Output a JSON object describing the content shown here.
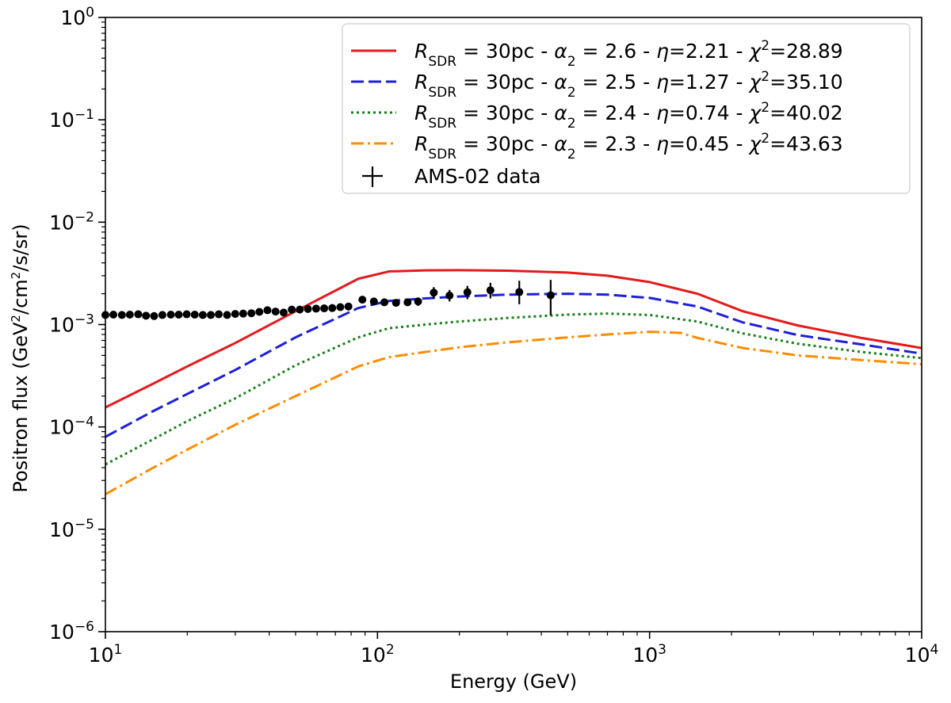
{
  "chart_data": {
    "type": "line",
    "xscale": "log",
    "yscale": "log",
    "xlim": [
      10,
      10000
    ],
    "ylim": [
      1e-06,
      1
    ],
    "xlabel": "Energy (GeV)",
    "ylabel_prefix": "Positron flux (GeV",
    "ylabel_sup1": "2",
    "ylabel_mid": "/cm",
    "ylabel_sup2": "2",
    "ylabel_suffix": "/s/sr)",
    "x_ticks": [
      {
        "value": 10,
        "base": "10",
        "exp": "1"
      },
      {
        "value": 100,
        "base": "10",
        "exp": "2"
      },
      {
        "value": 1000,
        "base": "10",
        "exp": "3"
      },
      {
        "value": 10000,
        "base": "10",
        "exp": "4"
      }
    ],
    "y_ticks": [
      {
        "value": 1e-06,
        "base": "10",
        "exp": "−6"
      },
      {
        "value": 1e-05,
        "base": "10",
        "exp": "−5"
      },
      {
        "value": 0.0001,
        "base": "10",
        "exp": "−4"
      },
      {
        "value": 0.001,
        "base": "10",
        "exp": "−3"
      },
      {
        "value": 0.01,
        "base": "10",
        "exp": "−2"
      },
      {
        "value": 0.1,
        "base": "10",
        "exp": "−1"
      },
      {
        "value": 1,
        "base": "10",
        "exp": "0"
      }
    ],
    "series": [
      {
        "name": "R_SDR = 30pc - α2 = 2.6 - η=2.21 - χ2=28.89",
        "color": "#e41a1c",
        "style": "solid",
        "legend": {
          "R": "R",
          "Rsub": "SDR",
          "eq1": " = 30pc - ",
          "alpha": "α",
          "alphasub": "2",
          "eq2": " = 2.6 - ",
          "eta": "η",
          "eq3": "=2.21 - ",
          "chi": "χ",
          "chisup": "2",
          "eq4": "=28.89"
        },
        "x": [
          10,
          15,
          20,
          30,
          50,
          85,
          110,
          150,
          200,
          300,
          500,
          700,
          1000,
          1500,
          2200,
          3500,
          6000,
          10000
        ],
        "y": [
          0.000155,
          0.000265,
          0.00039,
          0.00066,
          0.00135,
          0.0028,
          0.0033,
          0.00338,
          0.0034,
          0.00336,
          0.00322,
          0.003,
          0.0026,
          0.002,
          0.00135,
          0.00098,
          0.00074,
          0.00059
        ]
      },
      {
        "name": "R_SDR = 30pc - α2 = 2.5 - η=1.27 - χ2=35.10",
        "color": "#1f1fd6",
        "style": "dashed",
        "legend": {
          "R": "R",
          "Rsub": "SDR",
          "eq1": " = 30pc - ",
          "alpha": "α",
          "alphasub": "2",
          "eq2": " = 2.5 - ",
          "eta": "η",
          "eq3": "=1.27 - ",
          "chi": "χ",
          "chisup": "2",
          "eq4": "=35.10"
        },
        "x": [
          10,
          15,
          20,
          30,
          50,
          85,
          110,
          150,
          200,
          300,
          500,
          700,
          1000,
          1500,
          2200,
          3500,
          6000,
          10000
        ],
        "y": [
          8e-05,
          0.000143,
          0.00021,
          0.00036,
          0.00075,
          0.00145,
          0.0017,
          0.0018,
          0.00188,
          0.00196,
          0.002,
          0.00196,
          0.00182,
          0.0015,
          0.00105,
          0.00079,
          0.00064,
          0.00052
        ]
      },
      {
        "name": "R_SDR = 30pc - α2 = 2.4 - η=0.74 - χ2=40.02",
        "color": "#1a7f1a",
        "style": "dotted",
        "legend": {
          "R": "R",
          "Rsub": "SDR",
          "eq1": " = 30pc - ",
          "alpha": "α",
          "alphasub": "2",
          "eq2": " = 2.4 - ",
          "eta": "η",
          "eq3": "=0.74 - ",
          "chi": "χ",
          "chisup": "2",
          "eq4": "=40.02"
        },
        "x": [
          10,
          15,
          20,
          30,
          50,
          85,
          110,
          150,
          200,
          300,
          500,
          700,
          1000,
          1500,
          2200,
          3500,
          6000,
          10000
        ],
        "y": [
          4.3e-05,
          7.6e-05,
          0.000114,
          0.00019,
          0.0004,
          0.00075,
          0.00092,
          0.001,
          0.00107,
          0.00116,
          0.00125,
          0.00128,
          0.00124,
          0.00107,
          0.00082,
          0.00065,
          0.00054,
          0.00047
        ]
      },
      {
        "name": "R_SDR = 30pc - α2 = 2.3 - η=0.45 - χ2=43.63",
        "color": "#ff8c00",
        "style": "dashdot",
        "legend": {
          "R": "R",
          "Rsub": "SDR",
          "eq1": " = 30pc - ",
          "alpha": "α",
          "alphasub": "2",
          "eq2": " = 2.3 - ",
          "eta": "η",
          "eq3": "=0.45 - ",
          "chi": "χ",
          "chisup": "2",
          "eq4": "=43.63"
        },
        "x": [
          10,
          15,
          20,
          30,
          50,
          85,
          110,
          150,
          200,
          300,
          500,
          700,
          1000,
          1300,
          1500,
          2200,
          3500,
          6000,
          10000
        ],
        "y": [
          2.2e-05,
          4e-05,
          6e-05,
          0.000105,
          0.0002,
          0.00039,
          0.00048,
          0.00054,
          0.0006,
          0.00067,
          0.00075,
          0.0008,
          0.00085,
          0.00083,
          0.00074,
          0.00059,
          0.0005,
          0.00045,
          0.00041
        ]
      }
    ],
    "data_points": {
      "name": "AMS-02 data",
      "color": "#000000",
      "x": [
        10,
        10.7,
        11.5,
        12.3,
        13.2,
        14.1,
        15.1,
        16.2,
        17.4,
        18.6,
        19.9,
        21.3,
        22.8,
        24.4,
        26.1,
        28,
        30,
        32.1,
        34.4,
        36.8,
        39.4,
        42.2,
        45.2,
        48.4,
        51.8,
        55.5,
        59.5,
        63.7,
        68.2,
        73,
        78.2,
        88,
        97,
        106,
        117,
        129,
        141,
        161,
        184,
        214,
        260,
        332,
        433
      ],
      "y": [
        0.00124,
        0.00125,
        0.00124,
        0.00125,
        0.00126,
        0.00122,
        0.00121,
        0.00124,
        0.00125,
        0.00125,
        0.00126,
        0.00125,
        0.00124,
        0.00124,
        0.00126,
        0.00124,
        0.00127,
        0.00128,
        0.00129,
        0.00133,
        0.00138,
        0.00134,
        0.00131,
        0.0014,
        0.0014,
        0.00142,
        0.00143,
        0.00144,
        0.00145,
        0.00148,
        0.0015,
        0.00175,
        0.00168,
        0.00165,
        0.00163,
        0.00165,
        0.00168,
        0.00205,
        0.00192,
        0.00207,
        0.00216,
        0.00208,
        0.00193
      ],
      "yerr_up": [
        0,
        0,
        0,
        0,
        0,
        0,
        0,
        0,
        0,
        0,
        0,
        0,
        0,
        0,
        0,
        0,
        0,
        0,
        0,
        0,
        0,
        0,
        0,
        0,
        0,
        0,
        0,
        0,
        0,
        0,
        0,
        0.0001,
        0.0001,
        0.0001,
        0.00012,
        0.00013,
        0.00016,
        0.00027,
        0.00026,
        0.00032,
        0.0004,
        0.0006,
        0.0008
      ],
      "yerr_down": [
        0,
        0,
        0,
        0,
        0,
        0,
        0,
        0,
        0,
        0,
        0,
        0,
        0,
        0,
        0,
        0,
        0,
        0,
        0,
        0,
        0,
        0,
        0,
        0,
        0,
        0,
        0,
        0,
        0,
        0,
        0,
        0.0001,
        0.0001,
        0.0001,
        0.00012,
        0.00013,
        0.00016,
        0.00025,
        0.00024,
        0.0003,
        0.00036,
        0.0005,
        0.0007
      ]
    },
    "legend_position": "top-right"
  }
}
